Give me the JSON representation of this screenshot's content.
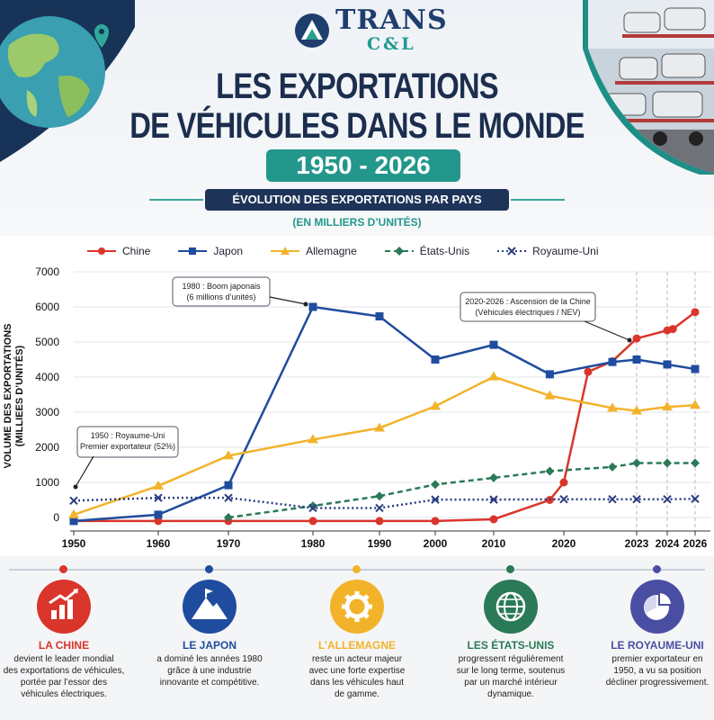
{
  "logo": {
    "line1": "TRANS",
    "line2": "C&L"
  },
  "title": {
    "line1": "LES EXPORTATIONS",
    "line2": "DE VÉHICULES DANS LE MONDE"
  },
  "years": "1950 - 2026",
  "subtitle": "ÉVOLUTION DES EXPORTATIONS PAR PAYS",
  "unit_note": "(EN MILLIERS D’UNITÉS)",
  "chart_data": {
    "type": "line",
    "ylabel": "VOLUME DES EXPORTATIONS",
    "ylabel2": "(MILLIEES D’UNITÉS)",
    "ylim": [
      0,
      7000
    ],
    "yticks": [
      0,
      1000,
      2000,
      3000,
      4000,
      5000,
      6000,
      7000
    ],
    "x": [
      1950,
      1960,
      1970,
      1980,
      1990,
      2000,
      2010,
      2020,
      2023,
      2024,
      2026
    ],
    "grid": true,
    "legend_position": "top",
    "series": [
      {
        "name": "Chine",
        "color": "#d9352b",
        "marker": "circle",
        "dash": "",
        "points": [
          [
            1950,
            -100
          ],
          [
            1960,
            -100
          ],
          [
            1970,
            -100
          ],
          [
            1980,
            -100
          ],
          [
            1990,
            -100
          ],
          [
            2000,
            -100
          ],
          [
            2010,
            -50
          ],
          [
            2018,
            500
          ],
          [
            2020,
            1000
          ],
          [
            2021,
            4150
          ],
          [
            2022,
            4450
          ],
          [
            2023,
            5100
          ],
          [
            2024,
            5330
          ],
          [
            2024.4,
            5370
          ],
          [
            2026,
            5850
          ]
        ]
      },
      {
        "name": "Japon",
        "color": "#1f4c9e",
        "marker": "square",
        "dash": "",
        "points": [
          [
            1950,
            -100
          ],
          [
            1960,
            80
          ],
          [
            1970,
            920
          ],
          [
            1980,
            6000
          ],
          [
            1990,
            5730
          ],
          [
            2000,
            4500
          ],
          [
            2010,
            4920
          ],
          [
            2018,
            4080
          ],
          [
            2022,
            4430
          ],
          [
            2023,
            4500
          ],
          [
            2024,
            4360
          ],
          [
            2026,
            4230
          ]
        ]
      },
      {
        "name": "Allemagne",
        "color": "#f2b32b",
        "marker": "triangle",
        "dash": "",
        "points": [
          [
            1950,
            80
          ],
          [
            1960,
            900
          ],
          [
            1970,
            1760
          ],
          [
            1980,
            2220
          ],
          [
            1990,
            2550
          ],
          [
            2000,
            3170
          ],
          [
            2010,
            4010
          ],
          [
            2018,
            3470
          ],
          [
            2022,
            3120
          ],
          [
            2023,
            3040
          ],
          [
            2024,
            3150
          ],
          [
            2026,
            3200
          ]
        ]
      },
      {
        "name": "États-Unis",
        "color": "#2a7a57",
        "marker": "diamond",
        "dash": "6,4",
        "points": [
          [
            1970,
            0
          ],
          [
            1980,
            330
          ],
          [
            1990,
            610
          ],
          [
            2000,
            940
          ],
          [
            2010,
            1130
          ],
          [
            2018,
            1320
          ],
          [
            2022,
            1440
          ],
          [
            2023,
            1550
          ],
          [
            2024,
            1550
          ],
          [
            2026,
            1550
          ]
        ]
      },
      {
        "name": "Royaume-Uni",
        "color": "#2b3d82",
        "marker": "x",
        "dash": "2,3",
        "points": [
          [
            1950,
            480
          ],
          [
            1960,
            560
          ],
          [
            1970,
            560
          ],
          [
            1980,
            270
          ],
          [
            1990,
            270
          ],
          [
            2000,
            510
          ],
          [
            2010,
            510
          ],
          [
            2020,
            520
          ],
          [
            2022,
            520
          ],
          [
            2023,
            520
          ],
          [
            2024,
            520
          ],
          [
            2026,
            530
          ]
        ]
      }
    ],
    "annotations": [
      {
        "lines": [
          "1950 : Royaume-Uni",
          "Premier exportateur (52%)"
        ]
      },
      {
        "lines": [
          "1980 : Boom japonais",
          "(6 millions d’unités)"
        ]
      },
      {
        "lines": [
          "2020-2026 : Ascension de la Chine",
          "(Véhicules électriques / NEV)"
        ]
      }
    ]
  },
  "cards": [
    {
      "title": "LA CHINE",
      "color": "#d9352b",
      "icon": "bar-growth-icon",
      "desc": [
        "devient le leader mondial",
        "des exportations de véhicules,",
        "portée par l’essor des",
        "véhicules électriques."
      ]
    },
    {
      "title": "LE JAPON",
      "color": "#1f4c9e",
      "icon": "mountain-flag-icon",
      "desc": [
        "a dominé les années 1980",
        "grâce à une industrie",
        "innovante et compétitive."
      ]
    },
    {
      "title": "L’ALLEMAGNE",
      "color": "#f2b32b",
      "icon": "gear-icon",
      "desc": [
        "reste un acteur majeur",
        "avec une forte expertise",
        "dans les véhicules haut",
        "de gamme."
      ]
    },
    {
      "title": "LES ÉTATS-UNIS",
      "color": "#2a7a57",
      "icon": "globe-icon",
      "desc": [
        "progressent régulièrement",
        "sur le long terme, soutenus",
        "par un marché intérieur",
        "dynamique."
      ]
    },
    {
      "title": "LE ROYAUME-UNI",
      "color": "#4a4ea3",
      "icon": "pie-chart-icon",
      "desc": [
        "premier exportateur en",
        "1950, a vu sa position",
        "décliner progressivement."
      ]
    }
  ]
}
